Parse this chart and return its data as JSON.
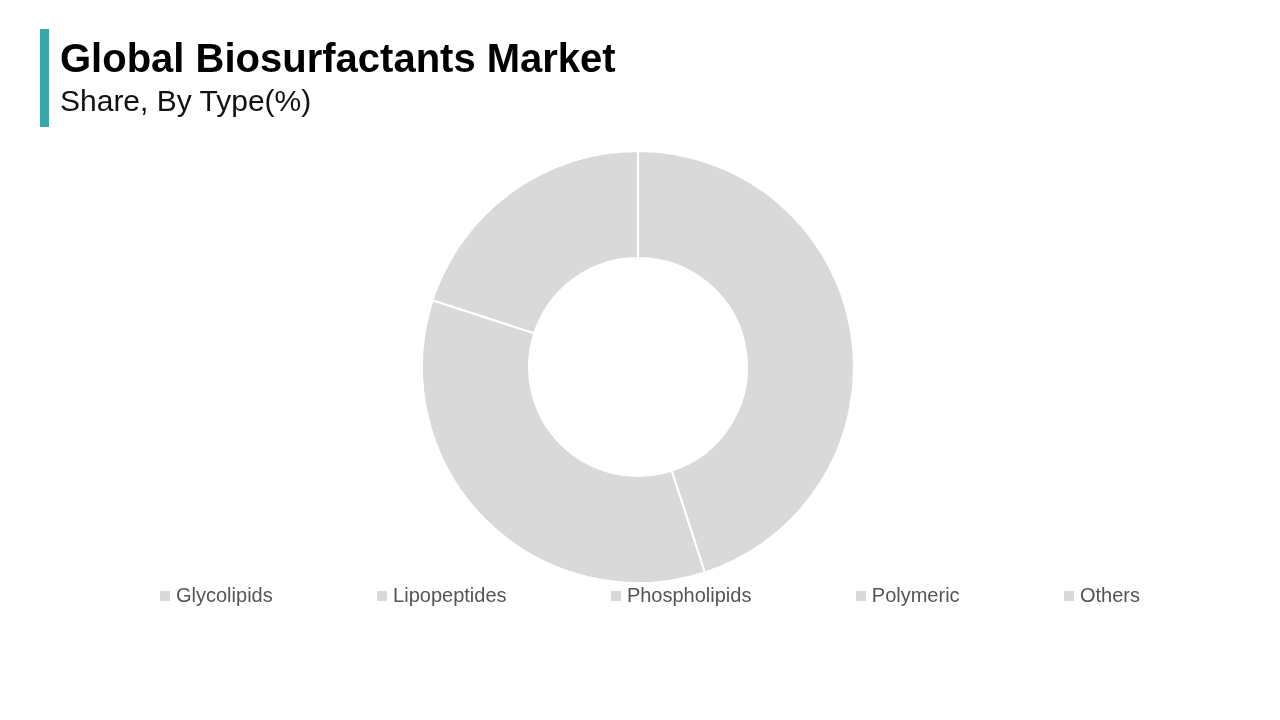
{
  "chart_data": {
    "type": "donut",
    "title": "Global Biosurfactants Market",
    "subtitle": "Share, By Type(%)",
    "categories": [
      "Glycolipids",
      "Lipopeptides",
      "Phospholipids",
      "Polymeric",
      "Others"
    ],
    "values": [
      45,
      35,
      20,
      0,
      0
    ],
    "colors": [
      "#d9d9d9",
      "#d9d9d9",
      "#d9d9d9",
      "#d9d9d9",
      "#d9d9d9"
    ],
    "legend": "bottom"
  }
}
